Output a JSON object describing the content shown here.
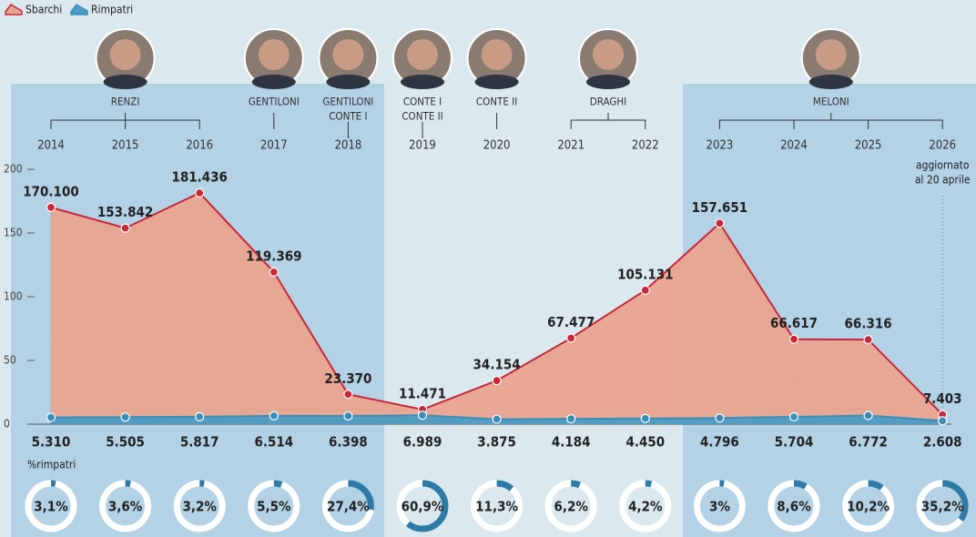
{
  "chart_data": {
    "type": "area",
    "categories": [
      "2014",
      "2015",
      "2016",
      "2017",
      "2018",
      "2019",
      "2020",
      "2021",
      "2022",
      "2023",
      "2024",
      "2025",
      "2026"
    ],
    "series": [
      {
        "name": "Sbarchi",
        "color": "#c8283a",
        "fill": "#e9a48f",
        "values": [
          170.1,
          153.842,
          181.436,
          119.369,
          23.37,
          11.471,
          34.154,
          67.477,
          105.131,
          157.651,
          66.617,
          66.316,
          7.403
        ],
        "value_labels": [
          "170.100",
          "153.842",
          "181.436",
          "119.369",
          "23.370",
          "11.471",
          "34.154",
          "67.477",
          "105.131",
          "157.651",
          "66.617",
          "66.316",
          "7.403"
        ]
      },
      {
        "name": "Rimpatri",
        "color": "#3a8fb8",
        "fill": "#4b9cc4",
        "values": [
          5.31,
          5.505,
          5.817,
          6.514,
          6.398,
          6.989,
          3.875,
          4.184,
          4.45,
          4.796,
          5.704,
          6.772,
          2.608
        ],
        "value_labels": [
          "5.310",
          "5.505",
          "5.817",
          "6.514",
          "6.398",
          "6.989",
          "3.875",
          "4.184",
          "4.450",
          "4.796",
          "5.704",
          "6.772",
          "2.608"
        ]
      }
    ],
    "share": {
      "label": "%rimpatri",
      "color": "#2d7ba6",
      "values": [
        3.1,
        3.6,
        3.2,
        5.5,
        27.4,
        60.9,
        11.3,
        6.2,
        4.2,
        3,
        8.6,
        10.2,
        35.2
      ],
      "value_labels": [
        "3,1%",
        "3,6%",
        "3,2%",
        "5,5%",
        "27,4%",
        "60,9%",
        "11,3%",
        "6,2%",
        "4,2%",
        "3%",
        "8,6%",
        "10,2%",
        "35,2%"
      ]
    },
    "governments": [
      {
        "lines": [
          "RENZI"
        ],
        "from": "2014",
        "to": "2016"
      },
      {
        "lines": [
          "GENTILONI"
        ],
        "from": "2017",
        "to": "2017"
      },
      {
        "lines": [
          "GENTILONI",
          "CONTE I"
        ],
        "from": "2018",
        "to": "2018"
      },
      {
        "lines": [
          "CONTE I",
          "CONTE II"
        ],
        "from": "2019",
        "to": "2019"
      },
      {
        "lines": [
          "CONTE II"
        ],
        "from": "2020",
        "to": "2020"
      },
      {
        "lines": [
          "DRAGHI"
        ],
        "from": "2021",
        "to": "2022"
      },
      {
        "lines": [
          "MELONI"
        ],
        "from": "2023",
        "to": "2026"
      }
    ],
    "annotation": [
      "aggiornato",
      "al 20 aprile"
    ],
    "ylim": [
      0,
      200
    ],
    "yticks": [
      0,
      50,
      100,
      150,
      200
    ]
  }
}
